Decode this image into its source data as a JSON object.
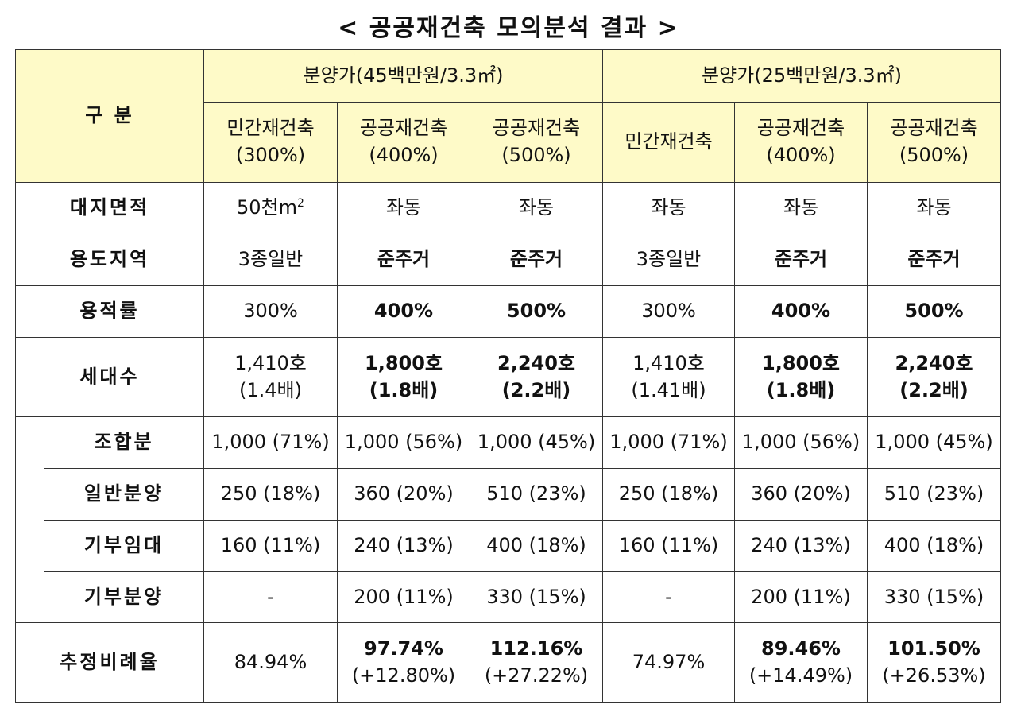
{
  "title": "< 공공재건축 모의분석 결과 >",
  "header": {
    "category": "구 분",
    "group1": "분양가(45백만원/3.3㎡)",
    "group2": "분양가(25백만원/3.3㎡)",
    "columns": [
      {
        "name": "민간재건축",
        "ratio": "(300%)"
      },
      {
        "name": "공공재건축",
        "ratio": "(400%)"
      },
      {
        "name": "공공재건축",
        "ratio": "(500%)"
      },
      {
        "name": "민간재건축",
        "ratio": ""
      },
      {
        "name": "공공재건축",
        "ratio": "(400%)"
      },
      {
        "name": "공공재건축",
        "ratio": "(500%)"
      }
    ]
  },
  "rows": {
    "site_area": {
      "label": "대지면적",
      "first": "50천m",
      "sup": "2",
      "others": [
        "좌동",
        "좌동",
        "좌동",
        "좌동",
        "좌동"
      ]
    },
    "zoning": {
      "label": "용도지역",
      "cells": [
        "3종일반",
        "준주거",
        "준주거",
        "3종일반",
        "준주거",
        "준주거"
      ]
    },
    "far": {
      "label": "용적률",
      "cells": [
        "300%",
        "400%",
        "500%",
        "300%",
        "400%",
        "500%"
      ]
    },
    "households": {
      "label": "세대수",
      "cells": [
        {
          "main": "1,410호",
          "sub": "(1.4배)"
        },
        {
          "main": "1,800호",
          "sub": "(1.8배)"
        },
        {
          "main": "2,240호",
          "sub": "(2.2배)"
        },
        {
          "main": "1,410호",
          "sub": "(1.41배)"
        },
        {
          "main": "1,800호",
          "sub": "(1.8배)"
        },
        {
          "main": "2,240호",
          "sub": "(2.2배)"
        }
      ]
    },
    "union": {
      "label": "조합분",
      "cells": [
        "1,000 (71%)",
        "1,000 (56%)",
        "1,000 (45%)",
        "1,000 (71%)",
        "1,000 (56%)",
        "1,000 (45%)"
      ]
    },
    "general_sale": {
      "label": "일반분양",
      "cells": [
        "250 (18%)",
        "360 (20%)",
        "510 (23%)",
        "250 (18%)",
        "360 (20%)",
        "510 (23%)"
      ]
    },
    "donated_rent": {
      "label": "기부임대",
      "cells": [
        "160 (11%)",
        "240 (13%)",
        "400 (18%)",
        "160 (11%)",
        "240 (13%)",
        "400 (18%)"
      ]
    },
    "donated_sale": {
      "label": "기부분양",
      "cells": [
        "-",
        "200 (11%)",
        "330 (15%)",
        "-",
        "200 (11%)",
        "330 (15%)"
      ]
    },
    "rate": {
      "label": "추정비례율",
      "cells": [
        {
          "main": "84.94%",
          "sub": ""
        },
        {
          "main": "97.74%",
          "sub": "(+12.80%)"
        },
        {
          "main": "112.16%",
          "sub": "(+27.22%)"
        },
        {
          "main": "74.97%",
          "sub": ""
        },
        {
          "main": "89.46%",
          "sub": "(+14.49%)"
        },
        {
          "main": "101.50%",
          "sub": "(+26.53%)"
        }
      ]
    }
  }
}
